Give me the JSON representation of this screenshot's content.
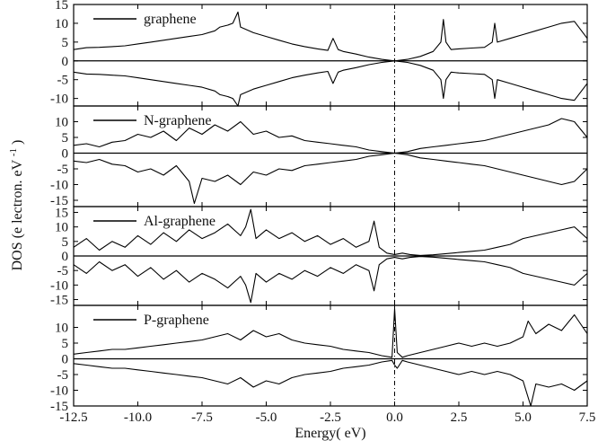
{
  "chart_data": {
    "type": "line",
    "ylabel_text": "DOS",
    "ylabel_unit": "(e",
    "ylabel_unit2": "lectron. eV",
    "ylabel_sup": "-1",
    "ylabel_close": ")",
    "xlabel": "Energy( eV)",
    "xlim": [
      -12.5,
      7.5
    ],
    "xticks": [
      -12.5,
      -10.0,
      -7.5,
      -5.0,
      -2.5,
      0.0,
      2.5,
      5.0,
      7.5
    ],
    "xtick_labels": [
      "-12.5",
      "-10.0",
      "-7.5",
      "-5.0",
      "-2.5",
      "0.0",
      "2.5",
      "5.0",
      "7.5"
    ],
    "fermi_level": 0.0,
    "grid": false,
    "legend_position": "top-left of each panel",
    "panels": [
      {
        "label": "graphene",
        "ylim": [
          -12,
          15
        ],
        "yticks": [
          15,
          10,
          5,
          0,
          -5,
          -10
        ],
        "ytick_labels": [
          "15",
          "10",
          "5",
          "0",
          "-5",
          "-10"
        ],
        "spin_up": {
          "x": [
            -12.5,
            -12,
            -11.5,
            -11,
            -10.5,
            -10,
            -9.5,
            -9,
            -8.5,
            -8,
            -7.5,
            -7,
            -6.8,
            -6.5,
            -6.3,
            -6.1,
            -6,
            -5.5,
            -5,
            -4.5,
            -4,
            -3.5,
            -3,
            -2.6,
            -2.4,
            -2.2,
            -2,
            -1.5,
            -1,
            -0.5,
            0,
            0.5,
            1,
            1.5,
            1.8,
            1.9,
            2.0,
            2.2,
            2.5,
            3,
            3.5,
            3.8,
            3.9,
            4.0,
            4.5,
            5,
            5.5,
            6,
            6.5,
            7,
            7.5
          ],
          "y": [
            3,
            3.5,
            3.6,
            3.8,
            4,
            4.5,
            5,
            5.5,
            6,
            6.5,
            7,
            8,
            9,
            9.5,
            10,
            13,
            9,
            7.5,
            6.5,
            5.5,
            4.5,
            3.8,
            3.2,
            2.8,
            6,
            3,
            2.5,
            1.8,
            1,
            0.4,
            0,
            0.4,
            1.2,
            2.5,
            5,
            11,
            5,
            3,
            3.2,
            3.4,
            3.6,
            5,
            10,
            5,
            6,
            7,
            8,
            9,
            10,
            10.5,
            6
          ]
        },
        "spin_down": {
          "x": [
            -12.5,
            -12,
            -11.5,
            -11,
            -10.5,
            -10,
            -9.5,
            -9,
            -8.5,
            -8,
            -7.5,
            -7,
            -6.8,
            -6.5,
            -6.3,
            -6.1,
            -6,
            -5.5,
            -5,
            -4.5,
            -4,
            -3.5,
            -3,
            -2.6,
            -2.4,
            -2.2,
            -2,
            -1.5,
            -1,
            -0.5,
            0,
            0.5,
            1,
            1.5,
            1.8,
            1.9,
            2.0,
            2.2,
            2.5,
            3,
            3.5,
            3.8,
            3.9,
            4.0,
            4.5,
            5,
            5.5,
            6,
            6.5,
            7,
            7.5
          ],
          "y": [
            -3,
            -3.5,
            -3.6,
            -3.8,
            -4,
            -4.5,
            -5,
            -5.5,
            -6,
            -6.5,
            -7,
            -8,
            -9,
            -9.5,
            -10,
            -12,
            -9,
            -7.5,
            -6.5,
            -5.5,
            -4.5,
            -3.8,
            -3.2,
            -2.8,
            -6,
            -3,
            -2.5,
            -1.8,
            -1,
            -0.4,
            0,
            -0.4,
            -1.2,
            -2.5,
            -5,
            -10,
            -5,
            -3,
            -3.2,
            -3.4,
            -3.6,
            -5,
            -10,
            -5,
            -6,
            -7,
            -8,
            -9,
            -10,
            -10.5,
            -6
          ]
        }
      },
      {
        "label": "N-graphene",
        "ylim": [
          -17,
          15
        ],
        "yticks": [
          10,
          5,
          0,
          -5,
          -10,
          -15
        ],
        "ytick_labels": [
          "10",
          "5",
          "0",
          "-5",
          "-10",
          "-15"
        ],
        "spin_up": {
          "x": [
            -12.5,
            -12,
            -11.5,
            -11,
            -10.5,
            -10,
            -9.5,
            -9,
            -8.5,
            -8,
            -7.5,
            -7,
            -6.5,
            -6,
            -5.5,
            -5,
            -4.5,
            -4,
            -3.5,
            -3,
            -2.5,
            -2,
            -1.5,
            -1,
            -0.5,
            0,
            0.5,
            1,
            1.5,
            2,
            2.5,
            3,
            3.5,
            4,
            4.5,
            5,
            5.5,
            6,
            6.5,
            7,
            7.5
          ],
          "y": [
            2.5,
            3,
            2,
            3.5,
            4,
            6,
            5,
            7,
            4,
            8,
            6,
            9,
            7,
            10,
            6,
            7,
            5,
            5.5,
            4,
            3.5,
            3,
            2.5,
            2,
            1,
            0.5,
            0,
            0.5,
            1.5,
            2,
            2.5,
            3,
            3.5,
            4,
            5,
            6,
            7,
            8,
            9,
            11,
            10,
            5
          ]
        },
        "spin_down": {
          "x": [
            -12.5,
            -12,
            -11.5,
            -11,
            -10.5,
            -10,
            -9.5,
            -9,
            -8.5,
            -8,
            -7.8,
            -7.5,
            -7,
            -6.5,
            -6,
            -5.5,
            -5,
            -4.5,
            -4,
            -3.5,
            -3,
            -2.5,
            -2,
            -1.5,
            -1,
            -0.5,
            0,
            0.5,
            1,
            1.5,
            2,
            2.5,
            3,
            3.5,
            4,
            4.5,
            5,
            5.5,
            6,
            6.5,
            7,
            7.5
          ],
          "y": [
            -2.5,
            -3,
            -2,
            -3.5,
            -4,
            -6,
            -5,
            -7,
            -4,
            -9,
            -16,
            -8,
            -9,
            -7,
            -10,
            -6,
            -7,
            -5,
            -5.5,
            -4,
            -3.5,
            -3,
            -2.5,
            -2,
            -1,
            -0.5,
            0,
            -0.5,
            -1.5,
            -2,
            -2.5,
            -3,
            -3.5,
            -4,
            -5,
            -6,
            -7,
            -8,
            -9,
            -10,
            -9,
            -5
          ]
        }
      },
      {
        "label": "Al-graphene",
        "ylim": [
          -17,
          17
        ],
        "yticks": [
          15,
          10,
          5,
          0,
          -5,
          -10,
          -15
        ],
        "ytick_labels": [
          "15",
          "10",
          "5",
          "0",
          "-5",
          "-10",
          "-15"
        ],
        "spin_up": {
          "x": [
            -12.5,
            -12,
            -11.5,
            -11,
            -10.5,
            -10,
            -9.5,
            -9,
            -8.5,
            -8,
            -7.5,
            -7,
            -6.5,
            -6,
            -5.8,
            -5.6,
            -5.4,
            -5,
            -4.5,
            -4,
            -3.5,
            -3,
            -2.5,
            -2,
            -1.5,
            -1,
            -0.8,
            -0.6,
            -0.3,
            0,
            0.3,
            0.6,
            1,
            1.5,
            2,
            2.5,
            3,
            3.5,
            4,
            4.5,
            5,
            5.5,
            6,
            6.5,
            7,
            7.5
          ],
          "y": [
            3,
            6,
            2,
            5,
            3,
            7,
            4,
            8,
            5,
            9,
            6,
            8,
            11,
            7,
            10,
            16,
            6,
            9,
            6,
            8,
            5,
            7,
            4,
            6,
            3,
            5,
            12,
            3,
            1,
            0.5,
            1,
            0.5,
            0.2,
            0.4,
            0.8,
            1.2,
            1.6,
            2,
            3,
            4,
            6,
            7,
            8,
            9,
            10,
            6
          ]
        },
        "spin_down": {
          "x": [
            -12.5,
            -12,
            -11.5,
            -11,
            -10.5,
            -10,
            -9.5,
            -9,
            -8.5,
            -8,
            -7.5,
            -7,
            -6.5,
            -6,
            -5.8,
            -5.6,
            -5.4,
            -5,
            -4.5,
            -4,
            -3.5,
            -3,
            -2.5,
            -2,
            -1.5,
            -1,
            -0.8,
            -0.6,
            -0.3,
            0,
            0.3,
            0.6,
            1,
            1.5,
            2,
            2.5,
            3,
            3.5,
            4,
            4.5,
            5,
            5.5,
            6,
            6.5,
            7,
            7.5
          ],
          "y": [
            -3,
            -6,
            -2,
            -5,
            -3,
            -7,
            -4,
            -8,
            -5,
            -9,
            -6,
            -8,
            -11,
            -7,
            -10,
            -16,
            -6,
            -9,
            -6,
            -8,
            -5,
            -7,
            -4,
            -6,
            -3,
            -5,
            -12,
            -3,
            -1,
            -0.5,
            -1,
            -0.5,
            -0.2,
            -0.4,
            -0.8,
            -1.2,
            -1.6,
            -2,
            -3,
            -4,
            -6,
            -7,
            -8,
            -9,
            -10,
            -6
          ]
        }
      },
      {
        "label": "P-graphene",
        "ylim": [
          -15,
          17
        ],
        "yticks": [
          10,
          5,
          0,
          -5,
          -10,
          -15
        ],
        "ytick_labels": [
          "10",
          "5",
          "0",
          "-5",
          "-10",
          "-15"
        ],
        "spin_up": {
          "x": [
            -12.5,
            -12,
            -11.5,
            -11,
            -10.5,
            -10,
            -9.5,
            -9,
            -8.5,
            -8,
            -7.5,
            -7,
            -6.5,
            -6,
            -5.5,
            -5,
            -4.5,
            -4,
            -3.5,
            -3,
            -2.5,
            -2,
            -1.5,
            -1,
            -0.5,
            -0.1,
            0,
            0.1,
            0.3,
            0.5,
            1,
            1.5,
            2,
            2.5,
            3,
            3.5,
            4,
            4.5,
            5,
            5.2,
            5.5,
            6,
            6.5,
            7,
            7.5
          ],
          "y": [
            1.5,
            2,
            2.5,
            3,
            3,
            3.5,
            4,
            4.5,
            5,
            5.5,
            6,
            7,
            8,
            6,
            9,
            7,
            8,
            6,
            5,
            4.5,
            4,
            3,
            2.5,
            2,
            1,
            0.5,
            16,
            2,
            0.5,
            1,
            2,
            3,
            4,
            5,
            4,
            5,
            4,
            5,
            7,
            12,
            8,
            11,
            9,
            14,
            8
          ]
        },
        "spin_down": {
          "x": [
            -12.5,
            -12,
            -11.5,
            -11,
            -10.5,
            -10,
            -9.5,
            -9,
            -8.5,
            -8,
            -7.5,
            -7,
            -6.5,
            -6,
            -5.5,
            -5,
            -4.5,
            -4,
            -3.5,
            -3,
            -2.5,
            -2,
            -1.5,
            -1,
            -0.5,
            -0.1,
            0,
            0.1,
            0.3,
            0.5,
            1,
            1.5,
            2,
            2.5,
            3,
            3.5,
            4,
            4.5,
            5,
            5.3,
            5.5,
            6,
            6.5,
            7,
            7.5
          ],
          "y": [
            -1.5,
            -2,
            -2.5,
            -3,
            -3,
            -3.5,
            -4,
            -4.5,
            -5,
            -5.5,
            -6,
            -7,
            -8,
            -6,
            -9,
            -7,
            -8,
            -6,
            -5,
            -4.5,
            -4,
            -3,
            -2.5,
            -2,
            -1,
            -0.5,
            -2,
            -3,
            -0.5,
            -1,
            -2,
            -3,
            -4,
            -5,
            -4,
            -5,
            -4,
            -5,
            -7,
            -15,
            -8,
            -9,
            -8,
            -10,
            -7
          ]
        }
      }
    ]
  }
}
